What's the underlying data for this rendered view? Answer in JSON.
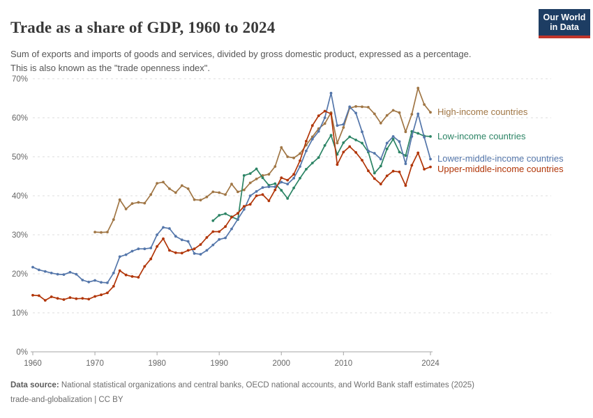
{
  "header": {
    "title": "Trade as a share of GDP, 1960 to 2024",
    "logo": {
      "line1": "Our World",
      "line2": "in Data"
    }
  },
  "subtitle": "Sum of exports and imports of goods and services, divided by gross domestic product, expressed as a percentage. This is also known as the \"trade openness index\".",
  "footer": {
    "source_label": "Data source:",
    "source_text": " National statistical organizations and central banks, OECD national accounts, and World Bank staff estimates (2025)",
    "line2": "trade-and-globalization | CC BY"
  },
  "theme": {
    "brand_navy": "#1d3d63",
    "brand_red": "#c0352b",
    "grid_color": "#dedede",
    "axis_color": "#a5a5a5",
    "tick_text_color": "#666666"
  },
  "chart_data": {
    "type": "line",
    "title": "Trade as a share of GDP, 1960 to 2024",
    "xlabel": "",
    "ylabel": "",
    "unit": "%",
    "xlim": [
      1960,
      2024
    ],
    "ylim": [
      0,
      70
    ],
    "grid": "dashed-horizontal",
    "legend_position": "right-of-line-end",
    "xticks": [
      1960,
      1970,
      1980,
      1990,
      2000,
      2010,
      2024
    ],
    "yticks": [
      0,
      10,
      20,
      30,
      40,
      50,
      60,
      70
    ],
    "series": [
      {
        "name": "High-income countries",
        "color": "#a07645",
        "start_year": 1970,
        "values": [
          30.7,
          30.6,
          30.7,
          33.9,
          39.0,
          36.6,
          38.0,
          38.3,
          38.1,
          40.3,
          43.2,
          43.5,
          41.8,
          40.8,
          42.6,
          41.8,
          39.0,
          38.9,
          39.7,
          41.0,
          40.8,
          40.3,
          43.0,
          41.0,
          41.5,
          43.3,
          44.3,
          45.2,
          45.5,
          47.5,
          52.4,
          50.0,
          49.7,
          50.8,
          53.0,
          55.1,
          57.2,
          58.5,
          61.3,
          53.5,
          57.5,
          62.5,
          62.9,
          62.8,
          62.7,
          61.0,
          58.6,
          60.6,
          61.9,
          61.3,
          56.4,
          60.9,
          67.6,
          63.4,
          61.4
        ]
      },
      {
        "name": "Low-income countries",
        "color": "#2c8465",
        "start_year": 1989,
        "values": [
          33.6,
          35.0,
          35.4,
          34.6,
          33.9,
          45.2,
          45.7,
          46.9,
          44.6,
          42.7,
          43.1,
          41.4,
          39.3,
          42.0,
          44.5,
          46.8,
          48.4,
          49.8,
          52.9,
          55.5,
          50.6,
          53.6,
          55.1,
          54.3,
          53.5,
          51.2,
          45.8,
          47.6,
          52.0,
          54.5,
          51.2,
          50.3,
          56.5,
          56.0,
          55.3,
          55.2
        ]
      },
      {
        "name": "Lower-middle-income countries",
        "color": "#5476aa",
        "start_year": 1960,
        "values": [
          21.7,
          21.0,
          20.6,
          20.2,
          19.9,
          19.8,
          20.4,
          19.9,
          18.4,
          17.9,
          18.3,
          17.8,
          17.7,
          20.2,
          24.4,
          24.9,
          25.8,
          26.4,
          26.4,
          26.6,
          30.0,
          31.9,
          31.6,
          29.6,
          28.7,
          28.3,
          25.2,
          25.0,
          26.0,
          27.4,
          28.8,
          29.2,
          31.5,
          34.0,
          36.5,
          40.0,
          41.1,
          42.1,
          42.3,
          42.3,
          43.5,
          43.0,
          44.5,
          47.5,
          51.5,
          54.5,
          56.5,
          60.0,
          66.3,
          58.0,
          58.3,
          62.8,
          61.2,
          56.4,
          51.5,
          50.9,
          49.4,
          53.5,
          55.2,
          53.9,
          48.2,
          55.2,
          61.0,
          55.0,
          49.4
        ]
      },
      {
        "name": "Upper-middle-income countries",
        "color": "#b13507",
        "start_year": 1960,
        "values": [
          14.5,
          14.4,
          13.2,
          14.1,
          13.7,
          13.4,
          13.9,
          13.6,
          13.7,
          13.5,
          14.2,
          14.6,
          15.1,
          16.8,
          20.8,
          19.7,
          19.3,
          19.1,
          21.9,
          23.8,
          27.0,
          29.0,
          26.0,
          25.4,
          25.3,
          26.0,
          26.4,
          27.5,
          29.3,
          30.8,
          30.8,
          32.1,
          34.5,
          35.5,
          37.3,
          37.8,
          40.0,
          40.3,
          38.7,
          41.5,
          44.6,
          44.0,
          45.5,
          49.0,
          54.0,
          58.0,
          60.5,
          61.7,
          61.0,
          48.0,
          51.2,
          52.6,
          51.1,
          49.1,
          46.4,
          44.4,
          43.0,
          45.1,
          46.3,
          46.1,
          42.6,
          47.8,
          51.0,
          46.8,
          47.4
        ]
      }
    ]
  }
}
